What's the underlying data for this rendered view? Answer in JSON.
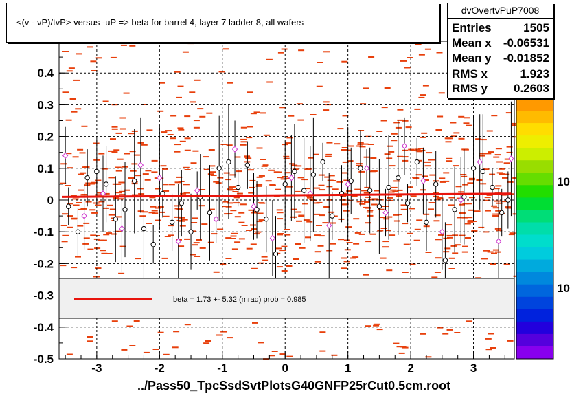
{
  "title": "<(v - vP)/tvP>  versus  -uP => beta for barrel 4, layer 7 ladder 8, all wafers",
  "xlabel": "../Pass50_TpcSsdSvtPlotsG40GNFP25rCut0.5cm.root",
  "stats": {
    "name": "dvOvertvPuP7008",
    "rows": [
      {
        "label": "Entries",
        "value": "1505"
      },
      {
        "label": "Mean x",
        "value": "-0.06531"
      },
      {
        "label": "Mean y",
        "value": "-0.01852"
      },
      {
        "label": "RMS x",
        "value": "1.923"
      },
      {
        "label": "RMS y",
        "value": "0.2603"
      }
    ]
  },
  "legend": {
    "text": "beta =    1.73 +-  5.32 (mrad) prob = 0.985",
    "line_color": "#e8140c"
  },
  "colorbar": {
    "labels": [
      "10",
      "10"
    ]
  },
  "colors": {
    "hist": "#e8400c",
    "fit": "#e8140c",
    "profile": "#000000",
    "profile2": "#cc33cc"
  },
  "chart_data": {
    "type": "scatter",
    "xlim": [
      -3.6,
      3.65
    ],
    "ylim": [
      -0.5,
      0.5
    ],
    "x_ticks": [
      -3,
      -2,
      -1,
      0,
      1,
      2,
      3
    ],
    "y_ticks": [
      -0.5,
      -0.4,
      -0.3,
      -0.2,
      -0.1,
      0,
      0.1,
      0.2,
      0.3,
      0.4
    ],
    "y_tick_labels": [
      "-0.5",
      "-0.4",
      "-0.3",
      "-0.2",
      "-0.1",
      "0",
      "0.1",
      "0.2",
      "0.3",
      "0.4"
    ],
    "grid": true,
    "fit": {
      "x": [
        -3.55,
        3.6
      ],
      "y": [
        0.01,
        0.02
      ]
    },
    "series": [
      {
        "marker": "open-circle-black",
        "x": [
          -3.45,
          -3.3,
          -3.15,
          -3.0,
          -2.85,
          -2.7,
          -2.55,
          -2.4,
          -2.25,
          -2.1,
          -1.95,
          -1.8,
          -1.65,
          -1.5,
          -1.35,
          -1.2,
          -1.05,
          -0.9,
          -0.75,
          -0.6,
          -0.45,
          -0.3,
          -0.15,
          0.0,
          0.15,
          0.3,
          0.45,
          0.6,
          0.75,
          0.9,
          1.05,
          1.2,
          1.35,
          1.5,
          1.65,
          1.8,
          1.95,
          2.1,
          2.25,
          2.4,
          2.55,
          2.7,
          2.85,
          3.0,
          3.15,
          3.3,
          3.45,
          3.55
        ],
        "y": [
          -0.02,
          -0.1,
          0.07,
          0.09,
          0.05,
          -0.06,
          -0.03,
          0.06,
          -0.09,
          -0.14,
          0.02,
          -0.07,
          -0.01,
          -0.1,
          0.01,
          -0.04,
          0.1,
          0.12,
          0.04,
          0.11,
          -0.03,
          -0.06,
          -0.17,
          0.05,
          0.09,
          0.03,
          0.08,
          0.12,
          -0.05,
          0.02,
          0.06,
          0.1,
          0.03,
          -0.02,
          0.04,
          0.07,
          -0.01,
          0.12,
          -0.07,
          0.05,
          -0.19,
          -0.03,
          0.01,
          0.1,
          0.09,
          0.04,
          -0.04,
          0.0
        ]
      },
      {
        "marker": "open-diamond-magenta",
        "x": [
          -3.5,
          -3.2,
          -2.9,
          -2.6,
          -2.3,
          -2.0,
          -1.7,
          -1.4,
          -1.1,
          -0.8,
          -0.5,
          -0.2,
          0.1,
          0.4,
          0.7,
          1.0,
          1.3,
          1.6,
          1.9,
          2.2,
          2.5,
          2.8,
          3.1,
          3.4,
          3.6
        ],
        "y": [
          0.14,
          -0.05,
          0.02,
          -0.09,
          0.11,
          0.07,
          -0.13,
          0.03,
          -0.06,
          0.16,
          -0.02,
          -0.12,
          0.07,
          0.02,
          -0.08,
          0.05,
          0.1,
          -0.04,
          0.17,
          0.06,
          -0.1,
          0.0,
          0.12,
          -0.13,
          0.13
        ]
      }
    ]
  }
}
